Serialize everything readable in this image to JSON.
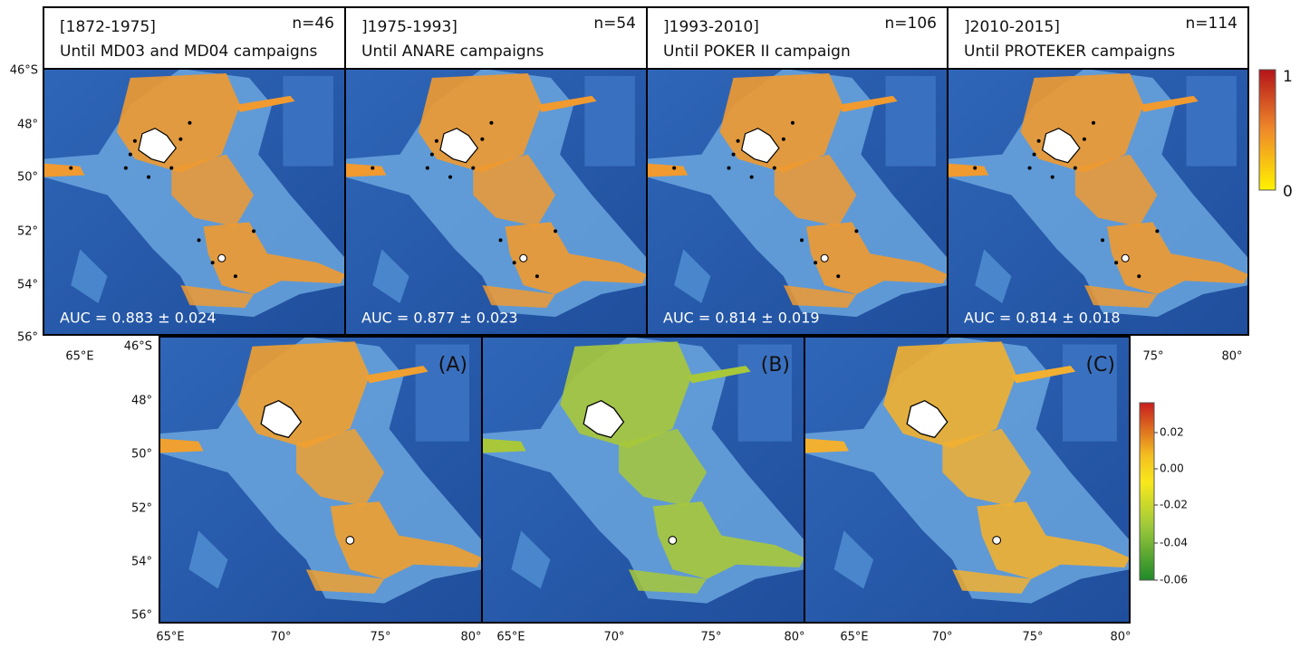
{
  "top_panels": [
    {
      "period": "[1872-1975]",
      "subtitle": "Until MD03 and MD04 campaigns",
      "n": "n=46",
      "auc": "AUC =  0.883 ± 0.024"
    },
    {
      "period": "]1975-1993]",
      "subtitle": "Until ANARE campaigns",
      "n": "n=54",
      "auc": "AUC =  0.877 ± 0.023"
    },
    {
      "period": "]1993-2010]",
      "subtitle": "Until POKER II campaign",
      "n": "n=106",
      "auc": "AUC =  0.814 ± 0.019"
    },
    {
      "period": "]2010-2015]",
      "subtitle": "Until PROTEKER campaigns",
      "n": "n=114",
      "auc": "AUC =  0.814 ± 0.018"
    }
  ],
  "top_lat_labels": [
    "46°S",
    "48°",
    "50°",
    "52°",
    "54°",
    "56°"
  ],
  "top_lon_labels": [
    "65°E",
    "75°",
    "80°"
  ],
  "top_colorbar": {
    "max": "1",
    "min": "0"
  },
  "bottom_panels": [
    {
      "label": "(A)",
      "lon_labels": [
        "65°E",
        "70°",
        "75°",
        "80°"
      ]
    },
    {
      "label": "(B)",
      "lon_labels": [
        "65°E",
        "70°",
        "75°",
        "80°"
      ]
    },
    {
      "label": "(C)",
      "lon_labels": [
        "65°E",
        "70°",
        "75°",
        "80°"
      ]
    }
  ],
  "bottom_lat_labels": [
    "46°S",
    "48°",
    "50°",
    "52°",
    "54°",
    "56°"
  ],
  "bottom_colorbar": {
    "ticks": [
      "0.02",
      "0.00",
      "-0.02",
      "-0.04",
      "-0.06"
    ]
  }
}
